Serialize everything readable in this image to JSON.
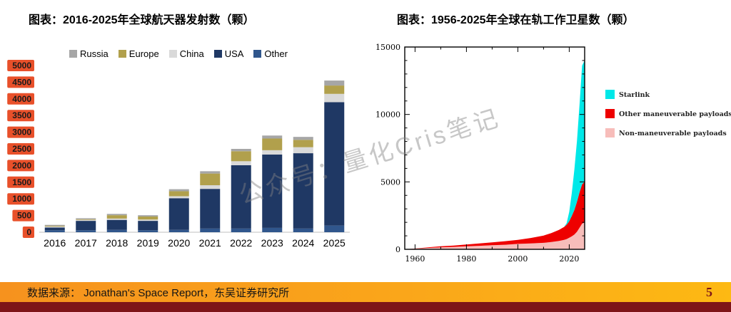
{
  "page": {
    "watermark": "公众号：量化Cris笔记",
    "source_text": "数据来源： Jonathan's Space Report，东吴证券研究所",
    "page_number": "5"
  },
  "left_chart": {
    "title": "图表：2016-2025年全球航天器发射数（颗）"
  },
  "right_chart": {
    "title": "图表：1956-2025年全球在轨工作卫星数（颗）"
  },
  "chart_data": [
    {
      "type": "bar",
      "stacked": true,
      "title": "2016-2025年全球航天器发射数（颗）",
      "categories": [
        "2016",
        "2017",
        "2018",
        "2019",
        "2020",
        "2021",
        "2022",
        "2023",
        "2024",
        "2025"
      ],
      "series": [
        {
          "name": "Other",
          "color": "#30568C",
          "values": [
            60,
            60,
            70,
            60,
            70,
            110,
            110,
            130,
            110,
            200
          ]
        },
        {
          "name": "USA",
          "color": "#1F3864",
          "values": [
            80,
            280,
            300,
            280,
            950,
            1190,
            1900,
            2200,
            2260,
            3700
          ]
        },
        {
          "name": "China",
          "color": "#D9D9D9",
          "values": [
            30,
            30,
            40,
            40,
            60,
            110,
            120,
            130,
            180,
            250
          ]
        },
        {
          "name": "Europe",
          "color": "#B1A04C",
          "values": [
            20,
            20,
            100,
            90,
            150,
            350,
            300,
            350,
            220,
            250
          ]
        },
        {
          "name": "Russia",
          "color": "#A6A6A6",
          "values": [
            30,
            30,
            40,
            40,
            60,
            70,
            70,
            90,
            90,
            150
          ]
        }
      ],
      "legend_order": [
        "Russia",
        "Europe",
        "China",
        "USA",
        "Other"
      ],
      "ylim": [
        0,
        5000
      ],
      "yticks": [
        0,
        500,
        1000,
        1500,
        2000,
        2500,
        3000,
        3500,
        4000,
        4500,
        5000
      ],
      "ytick_style": {
        "bg": "#E8502A",
        "fg": "#1A1A1A"
      }
    },
    {
      "type": "area",
      "stacked": true,
      "title": "1956-2025年全球在轨工作卫星数（颗）",
      "x": [
        1957,
        1960,
        1965,
        1970,
        1975,
        1980,
        1985,
        1990,
        1995,
        2000,
        2005,
        2010,
        2013,
        2016,
        2018,
        2019,
        2020,
        2021,
        2022,
        2023,
        2024,
        2025,
        2026
      ],
      "series": [
        {
          "name": "Non-maneuverable payloads",
          "key": "non_maneuverable",
          "color": "#F7BDBA",
          "values": [
            10,
            50,
            100,
            150,
            180,
            220,
            260,
            300,
            340,
            400,
            440,
            480,
            540,
            620,
            700,
            760,
            860,
            960,
            1100,
            1300,
            1600,
            1900,
            2000
          ]
        },
        {
          "name": "Other maneuverable payloads",
          "key": "other_maneuverable",
          "color": "#EE0000",
          "values": [
            0,
            10,
            40,
            70,
            100,
            140,
            180,
            220,
            260,
            300,
            400,
            540,
            660,
            820,
            960,
            1060,
            1220,
            1520,
            1820,
            2220,
            2620,
            2920,
            3020
          ]
        },
        {
          "name": "Starlink",
          "key": "starlink",
          "color": "#00E8E8",
          "values": [
            0,
            0,
            0,
            0,
            0,
            0,
            0,
            0,
            0,
            0,
            0,
            0,
            0,
            0,
            0,
            120,
            700,
            1700,
            3000,
            4500,
            6500,
            8800,
            9000
          ]
        }
      ],
      "legend": [
        {
          "label": "Starlink",
          "color": "#00E8E8"
        },
        {
          "label": "Other maneuverable payloads",
          "color": "#EE0000"
        },
        {
          "label": "Non-maneuverable payloads",
          "color": "#F7BDBA"
        }
      ],
      "xlim": [
        1956,
        2026
      ],
      "ylim": [
        0,
        15000
      ],
      "xticks": [
        1960,
        1980,
        2000,
        2020
      ],
      "yticks": [
        0,
        5000,
        10000,
        15000
      ]
    }
  ]
}
